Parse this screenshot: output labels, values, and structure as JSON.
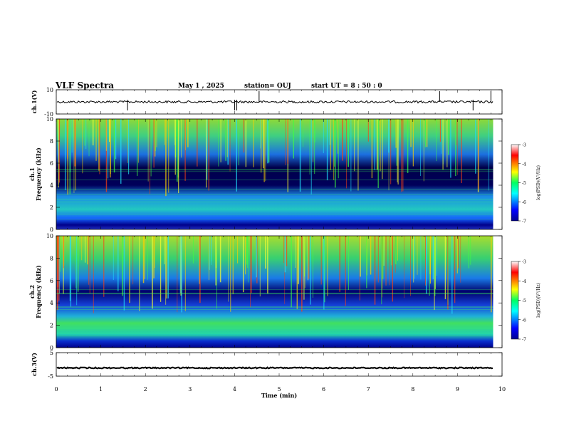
{
  "header": {
    "title": "VLF Spectra",
    "date": "May 1 , 2025",
    "station": "station= OUJ",
    "start": "start UT = 8 : 50 : 0"
  },
  "chart_data": [
    {
      "type": "line",
      "panel": "ch1-waveform",
      "ylabel": "ch.1(V)",
      "yticks": [
        "10",
        "-10"
      ],
      "ylim": [
        -10,
        10
      ],
      "x": [
        0,
        9.8
      ],
      "values": [
        0,
        0
      ],
      "color": "#000000"
    },
    {
      "type": "heatmap",
      "panel": "ch1-spectrogram",
      "ylabel_line1": "ch.1",
      "ylabel_line2": "Frequency (kHz)",
      "yticks": [
        "0",
        "2",
        "4",
        "6",
        "8",
        "10"
      ],
      "ylim": [
        0,
        10
      ],
      "xlim": [
        0,
        10
      ],
      "colorbar": {
        "label": "log(PSD)(V²/Hz)",
        "ticks": [
          "-3",
          "-4",
          "-5",
          "-6",
          "-7"
        ],
        "range": [
          -7,
          -3
        ]
      }
    },
    {
      "type": "heatmap",
      "panel": "ch2-spectrogram",
      "ylabel_line1": "ch.2",
      "ylabel_line2": "Frequency (kHz)",
      "yticks": [
        "0",
        "2",
        "4",
        "6",
        "8",
        "10"
      ],
      "ylim": [
        0,
        10
      ],
      "xlim": [
        0,
        10
      ],
      "colorbar": {
        "label": "log(PSD)(V²/Hz)",
        "ticks": [
          "-3",
          "-4",
          "-5",
          "-6",
          "-7"
        ],
        "range": [
          -7,
          -3
        ]
      }
    },
    {
      "type": "line",
      "panel": "ch3-waveform",
      "ylabel": "ch.3(V)",
      "yticks": [
        "5",
        "-5"
      ],
      "ylim": [
        -5,
        5
      ],
      "x": [
        0,
        9.8
      ],
      "values": [
        -1.5,
        -1.5
      ],
      "color": "#000000"
    }
  ],
  "xaxis": {
    "label": "Time (min)",
    "ticks": [
      "0",
      "1",
      "2",
      "3",
      "4",
      "5",
      "6",
      "7",
      "8",
      "9",
      "10"
    ],
    "range": [
      0,
      10
    ]
  }
}
